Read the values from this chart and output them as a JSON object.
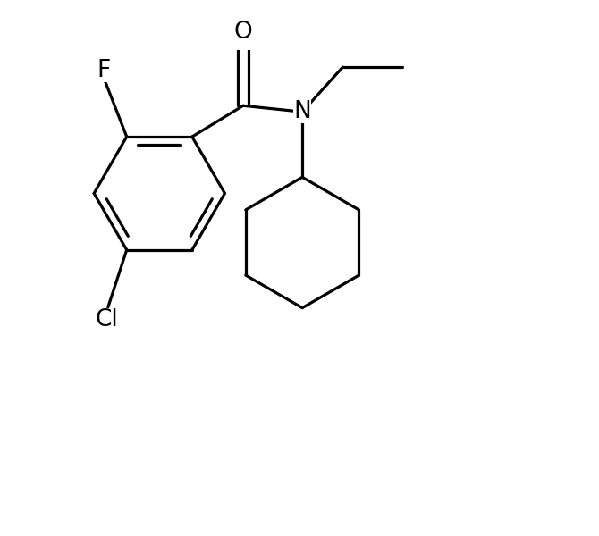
{
  "background_color": "#ffffff",
  "line_color": "#000000",
  "line_width": 2.3,
  "font_size": 19,
  "figsize": [
    6.7,
    6.0
  ],
  "dpi": 100,
  "xlim": [
    -4.0,
    5.5
  ],
  "ylim": [
    -4.5,
    2.5
  ]
}
